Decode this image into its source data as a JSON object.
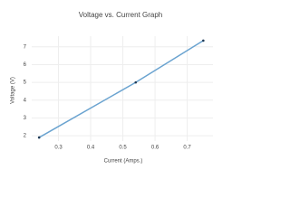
{
  "chart_data": {
    "type": "line",
    "title": "Voltage vs. Current Graph",
    "x_label": "Current (Amps.)",
    "y_label": "Voltage (V)",
    "x": [
      0.24,
      0.54,
      0.75
    ],
    "series": [
      {
        "name": "Voltage",
        "color": "#6aa3d0",
        "values": [
          1.9,
          5.0,
          7.35
        ]
      }
    ],
    "xlim": [
      0.217,
      0.78
    ],
    "xticks": [
      0.3,
      0.4,
      0.5,
      0.6,
      0.7
    ],
    "ylim": [
      1.7,
      7.6
    ],
    "yticks": [
      2,
      3,
      4,
      5,
      6,
      7
    ],
    "grid": true,
    "markers": true
  }
}
